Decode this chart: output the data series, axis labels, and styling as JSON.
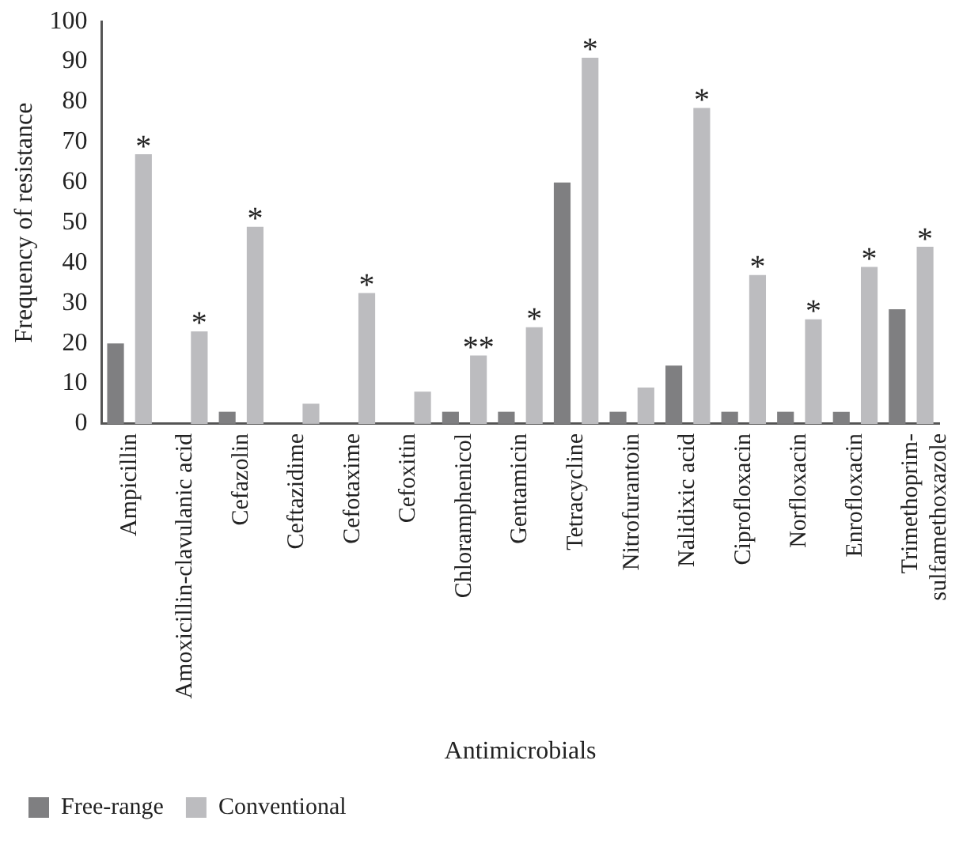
{
  "chart_data": {
    "type": "bar",
    "xlabel": "Antimicrobials",
    "ylabel": "Frequency of resistance",
    "categories": [
      "Ampicillin",
      "Amoxicillin-clavulanic acid",
      "Cefazolin",
      "Ceftazidime",
      "Cefotaxime",
      "Cefoxitin",
      "Chloramphenicol",
      "Gentamicin",
      "Tetracycline",
      "Nitrofurantoin",
      "Nalidixic acid",
      "Ciprofloxacin",
      "Norfloxacin",
      "Enrofloxacin",
      "Trimethoprim-sulfamethoxazole"
    ],
    "series": [
      {
        "name": "Free-range",
        "color": "#7f7f81",
        "values": [
          20,
          0,
          3,
          0,
          0,
          0,
          3,
          3,
          60,
          3,
          14.5,
          3,
          3,
          3,
          28.5
        ]
      },
      {
        "name": "Conventional",
        "color": "#bcbcbf",
        "values": [
          67,
          23,
          49,
          5,
          32.5,
          8,
          17,
          24,
          91,
          9,
          78.5,
          37,
          26,
          39,
          44
        ]
      }
    ],
    "ylim": [
      0,
      100
    ],
    "yticks": [
      0,
      10,
      20,
      30,
      40,
      50,
      60,
      70,
      80,
      90,
      100
    ],
    "grid": false,
    "legend": "bottom left",
    "annotations": [
      {
        "text": "*",
        "x": "Ampicillin",
        "y": 67
      },
      {
        "text": "*",
        "x": "Amoxicillin-clavulanic acid",
        "y": 23
      },
      {
        "text": "*",
        "x": "Cefazolin",
        "y": 49
      },
      {
        "text": "*",
        "x": "Cefotaxime",
        "y": 32.5
      },
      {
        "text": "**",
        "x": "Chloramphenicol",
        "y": 17
      },
      {
        "text": "*",
        "x": "Gentamicin",
        "y": 24
      },
      {
        "text": "*",
        "x": "Tetracycline",
        "y": 91
      },
      {
        "text": "*",
        "x": "Nalidixic acid",
        "y": 78.5
      },
      {
        "text": "*",
        "x": "Ciprofloxacin",
        "y": 37
      },
      {
        "text": "*",
        "x": "Norfloxacin",
        "y": 26
      },
      {
        "text": "*",
        "x": "Enrofloxacin",
        "y": 39
      },
      {
        "text": "*",
        "x": "Trimethoprim-sulfamethoxazole",
        "y": 44
      }
    ]
  }
}
